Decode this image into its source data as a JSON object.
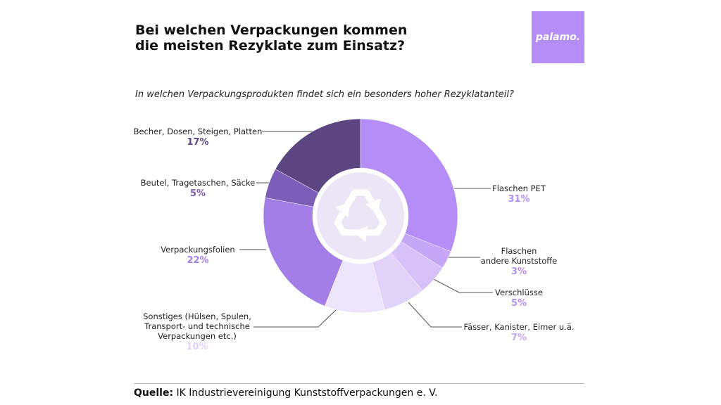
{
  "chart_data": {
    "type": "pie",
    "title": "Bei welchen Verpackungen kommen\ndie meisten Rezyklate zum Einsatz?",
    "subtitle": "In welchen Verpackungsprodukten findet sich ein besonders hoher Rezyklatanteil?",
    "categories": [
      "Flaschen PET",
      "Flaschen\nandere Kunststoffe",
      "Verschlüsse",
      "Fässer, Kanister, Eimer u.ä.",
      "Sonstiges (Hülsen, Spulen,\nTransport- und technische\nVerpackungen etc.)",
      "Verpackungsfolien",
      "Beutel, Tragetaschen, Säcke",
      "Becher, Dosen, Steigen, Platten"
    ],
    "values": [
      31,
      3,
      5,
      7,
      10,
      22,
      5,
      17
    ],
    "value_labels": [
      "31%",
      "3%",
      "5%",
      "7%",
      "10%",
      "22%",
      "5%",
      "17%"
    ],
    "colors": [
      "#b48df6",
      "#c5a6f7",
      "#d6c1f9",
      "#e1d2fa",
      "#ede5fc",
      "#a37ee6",
      "#7c5eb8",
      "#5c4682"
    ]
  },
  "logo": "palamo.",
  "source": {
    "label": "Quelle:",
    "text": "IK Industrievereinigung Kunststoffverpackungen e. V."
  }
}
